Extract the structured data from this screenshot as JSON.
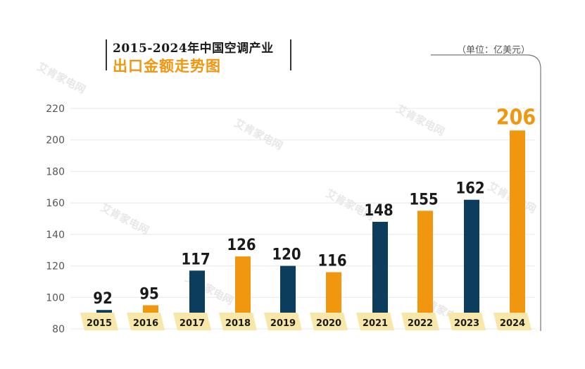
{
  "header": {
    "title_line1": "2015-2024年中国空调产业",
    "title_line2": "出口金额走势图",
    "unit": "（单位：亿美元）"
  },
  "watermark": "艾肯家电网",
  "colors": {
    "navy": "#0c3d5c",
    "orange": "#f0960f",
    "label_box": "#f7e7a8",
    "grid": "#e8e8e8",
    "axis_text": "#555555"
  },
  "chart_data": {
    "type": "bar",
    "categories": [
      "2015",
      "2016",
      "2017",
      "2018",
      "2019",
      "2020",
      "2021",
      "2022",
      "2023",
      "2024"
    ],
    "values": [
      92,
      95,
      117,
      126,
      120,
      116,
      148,
      155,
      162,
      206
    ],
    "bar_colors": [
      "navy",
      "orange",
      "navy",
      "orange",
      "navy",
      "orange",
      "navy",
      "orange",
      "navy",
      "orange"
    ],
    "ylim": [
      80,
      220
    ],
    "yticks": [
      80,
      100,
      120,
      140,
      160,
      180,
      200,
      220
    ],
    "grid": true,
    "legend": "none"
  }
}
